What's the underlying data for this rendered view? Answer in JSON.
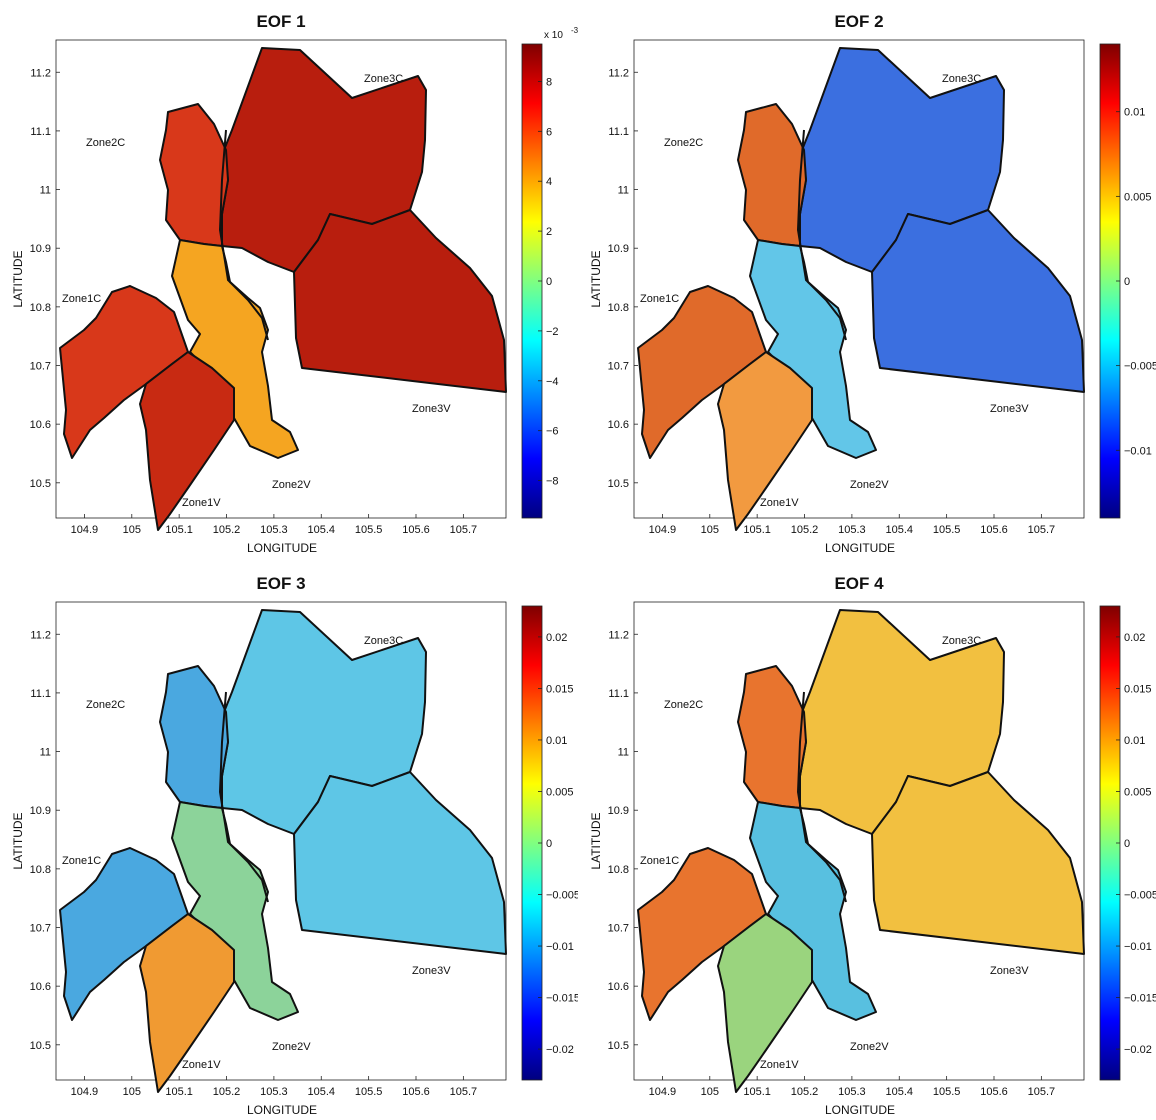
{
  "figure": {
    "panels": [
      {
        "title": "EOF 1",
        "colorbar": {
          "exponent_label": "x 10",
          "exponent_sup": "-3",
          "min": -9.5,
          "max": 9.5,
          "ticks": [
            "8",
            "6",
            "4",
            "2",
            "0",
            "−2",
            "−4",
            "−6",
            "−8"
          ],
          "tick_values": [
            8,
            6,
            4,
            2,
            0,
            -2,
            -4,
            -6,
            -8
          ]
        },
        "fill": {
          "main": "#b81e0e",
          "west": "#d8381a",
          "midwest": "#f5a521",
          "south": "#c82a12"
        }
      },
      {
        "title": "EOF 2",
        "colorbar": {
          "exponent_label": "",
          "exponent_sup": "",
          "min": -0.014,
          "max": 0.014,
          "ticks": [
            "0.01",
            "0.005",
            "0",
            "−0.005",
            "−0.01"
          ],
          "tick_values": [
            0.01,
            0.005,
            0,
            -0.005,
            -0.01
          ]
        },
        "fill": {
          "main": "#3b6fe0",
          "west": "#e06a2a",
          "midwest": "#62c6e8",
          "south": "#f29a40"
        }
      },
      {
        "title": "EOF 3",
        "colorbar": {
          "exponent_label": "",
          "exponent_sup": "",
          "min": -0.023,
          "max": 0.023,
          "ticks": [
            "0.02",
            "0.015",
            "0.01",
            "0.005",
            "0",
            "−0.005",
            "−0.01",
            "−0.015",
            "−0.02"
          ],
          "tick_values": [
            0.02,
            0.015,
            0.01,
            0.005,
            0,
            -0.005,
            -0.01,
            -0.015,
            -0.02
          ]
        },
        "fill": {
          "main": "#5ec6e6",
          "west": "#4aa8e0",
          "midwest": "#8cd39a",
          "south": "#f09a32"
        }
      },
      {
        "title": "EOF 4",
        "colorbar": {
          "exponent_label": "",
          "exponent_sup": "",
          "min": -0.023,
          "max": 0.023,
          "ticks": [
            "0.02",
            "0.015",
            "0.01",
            "0.005",
            "0",
            "−0.005",
            "−0.01",
            "−0.015",
            "−0.02"
          ],
          "tick_values": [
            0.02,
            0.015,
            0.01,
            0.005,
            0,
            -0.005,
            -0.01,
            -0.015,
            -0.02
          ]
        },
        "fill": {
          "main": "#f2c040",
          "west": "#e8742e",
          "midwest": "#58c0e0",
          "south": "#9ad47e"
        }
      }
    ],
    "axes": {
      "xlabel": "LONGITUDE",
      "ylabel": "LATITUDE",
      "xticks": [
        "104.9",
        "105",
        "105.1",
        "105.2",
        "105.3",
        "105.4",
        "105.5",
        "105.6",
        "105.7"
      ],
      "yticks": [
        "11.2",
        "11.1",
        "11",
        "10.9",
        "10.8",
        "10.7",
        "10.6",
        "10.5"
      ]
    },
    "zones": [
      "Zone3C",
      "Zone2C",
      "Zone1C",
      "Zone3V",
      "Zone2V",
      "Zone1V"
    ]
  }
}
